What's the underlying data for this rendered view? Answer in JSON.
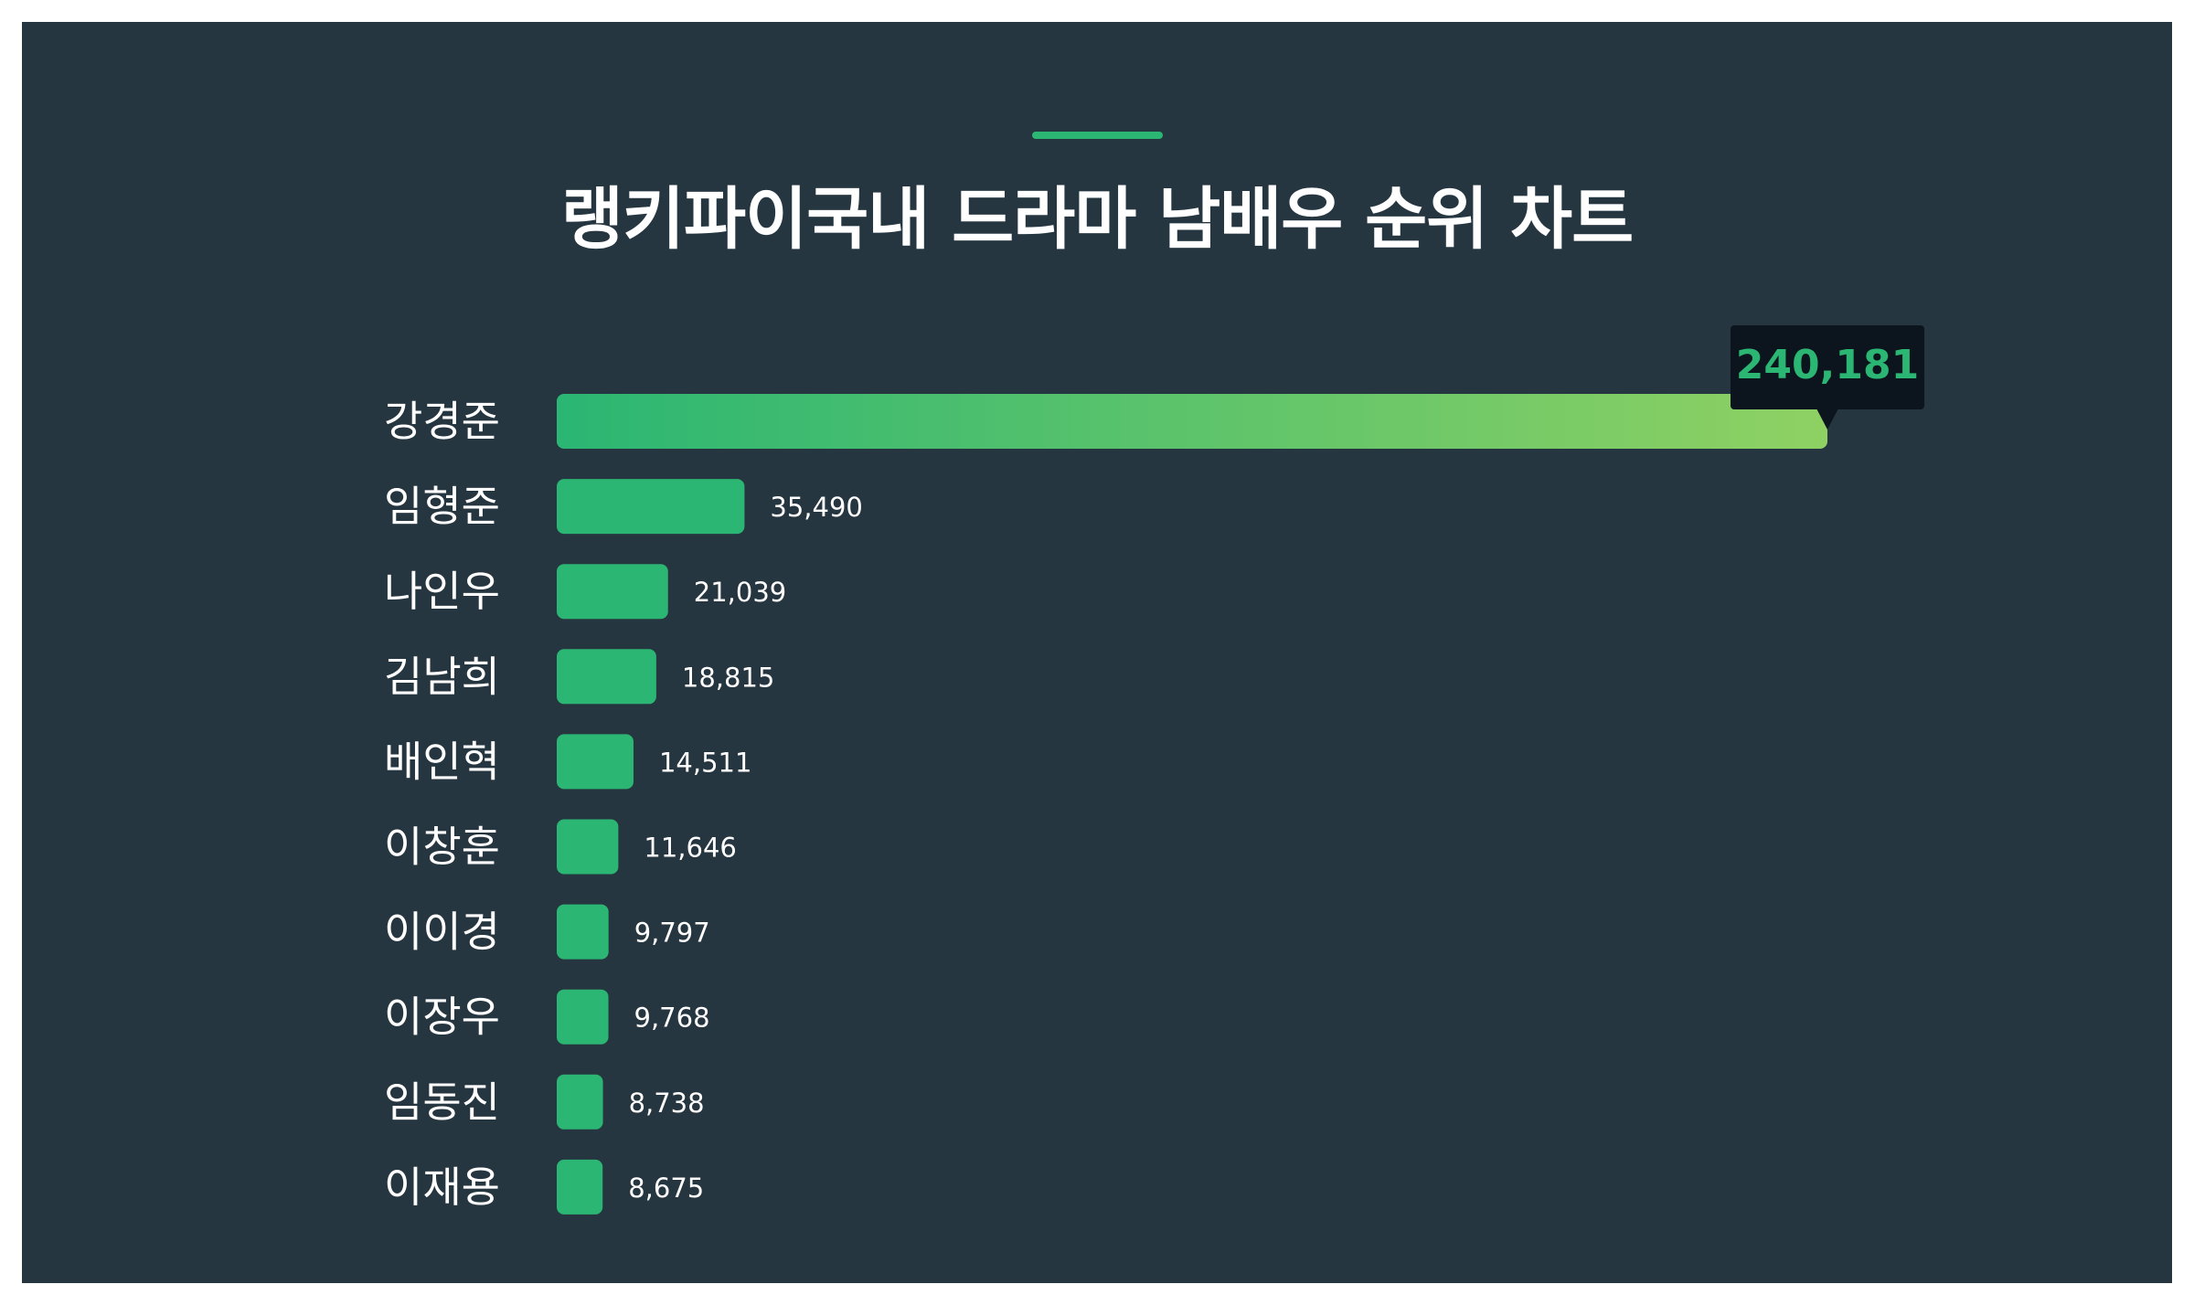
{
  "title": "랭키파이국내 드라마 남배우 순위 차트",
  "colors": {
    "background": "#263641",
    "bar": "#2bb673",
    "gradient_start": "#2bb673",
    "gradient_end": "#8fd163",
    "tooltip_bg": "#0c151d",
    "text": "#ffffff"
  },
  "chart_data": {
    "type": "bar",
    "orientation": "horizontal",
    "title": "랭키파이국내 드라마 남배우 순위 차트",
    "categories": [
      "강경준",
      "임형준",
      "나인우",
      "김남희",
      "배인혁",
      "이창훈",
      "이이경",
      "이장우",
      "임동진",
      "이재용"
    ],
    "values": [
      240181,
      35490,
      21039,
      18815,
      14511,
      11646,
      9797,
      9768,
      8738,
      8675
    ],
    "value_labels": [
      "240,181",
      "35,490",
      "21,039",
      "18,815",
      "14,511",
      "11,646",
      "9,797",
      "9,768",
      "8,738",
      "8,675"
    ],
    "xlim": [
      0,
      240181
    ],
    "highlight_index": 0,
    "grid": false,
    "legend": "none"
  }
}
